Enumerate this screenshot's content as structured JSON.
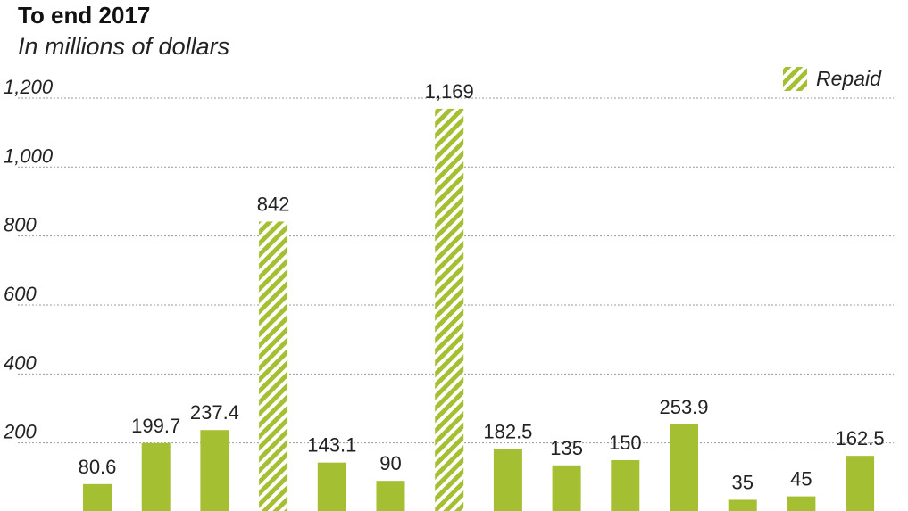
{
  "chart_data": {
    "type": "bar",
    "title": "To end 2017",
    "subtitle": "In millions of dollars",
    "xlabel": "",
    "ylabel": "",
    "ylim": [
      0,
      1200
    ],
    "yticks": [
      200,
      400,
      600,
      800,
      1000,
      1200
    ],
    "ytick_labels": [
      "200",
      "400",
      "600",
      "800",
      "1,000",
      "1,200"
    ],
    "grid": true,
    "legend": {
      "label": "Repaid",
      "placement": "top-right"
    },
    "colors": {
      "bar": "#a5bf33",
      "grid": "#999999",
      "text": "#222222"
    },
    "values": [
      80.6,
      199.7,
      237.4,
      842,
      143.1,
      90,
      1169,
      182.5,
      135,
      150,
      253.9,
      35,
      45,
      162.5
    ],
    "value_labels": [
      "80.6",
      "199.7",
      "237.4",
      "842",
      "143.1",
      "90",
      "1,169",
      "182.5",
      "135",
      "150",
      "253.9",
      "35",
      "45",
      "162.5"
    ],
    "repaid": [
      false,
      false,
      false,
      true,
      false,
      false,
      true,
      false,
      false,
      false,
      false,
      false,
      false,
      false
    ]
  }
}
